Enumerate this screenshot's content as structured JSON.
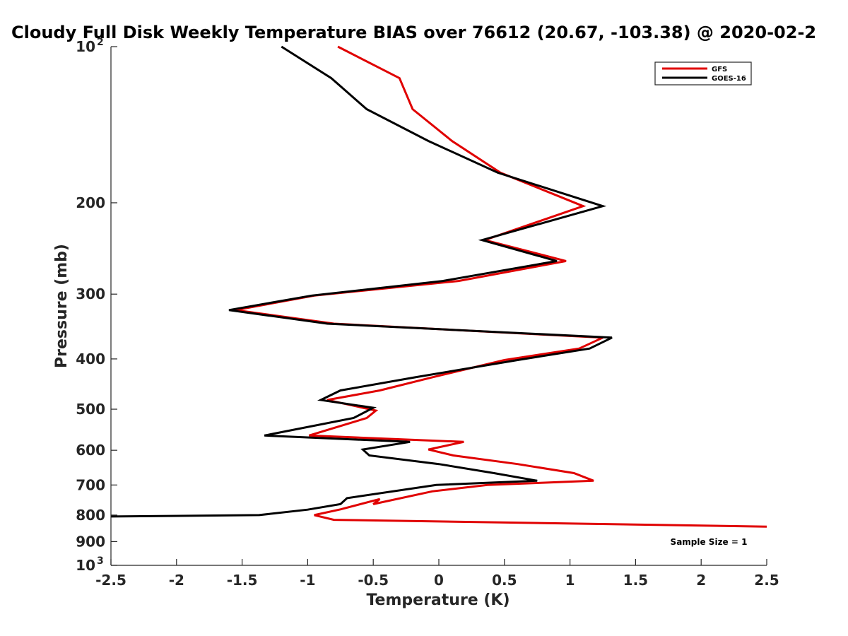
{
  "chart_data": {
    "type": "line",
    "title": "Cloudy Full Disk Weekly Temperature BIAS over 76612 (20.67, -103.38) @ 2020-02-2",
    "xlabel": "Temperature (K)",
    "ylabel": "Pressure (mb)",
    "xlim": [
      -2.5,
      2.5
    ],
    "ylim": [
      100,
      1000
    ],
    "yscale": "log",
    "y_reversed": true,
    "x_ticks": [
      -2.5,
      -2,
      -1.5,
      -1,
      -0.5,
      0,
      0.5,
      1,
      1.5,
      2,
      2.5
    ],
    "x_tick_labels": [
      "-2.5",
      "-2",
      "-1.5",
      "-1",
      "-0.5",
      "0",
      "0.5",
      "1",
      "1.5",
      "2",
      "2.5"
    ],
    "y_ticks": [
      {
        "value": 100,
        "base": "10",
        "exp": "2"
      },
      {
        "value": 200,
        "label": "200"
      },
      {
        "value": 300,
        "label": "300"
      },
      {
        "value": 400,
        "label": "400"
      },
      {
        "value": 500,
        "label": "500"
      },
      {
        "value": 600,
        "label": "600"
      },
      {
        "value": 700,
        "label": "700"
      },
      {
        "value": 800,
        "label": "800"
      },
      {
        "value": 900,
        "label": "900"
      },
      {
        "value": 1000,
        "base": "10",
        "exp": "3"
      }
    ],
    "legend_position": "top-right",
    "annotation": "Sample Size = 1",
    "series": [
      {
        "name": "GFS",
        "color": "#e00000",
        "points": [
          [
            -0.77,
            100
          ],
          [
            -0.3,
            115
          ],
          [
            -0.2,
            132
          ],
          [
            0.1,
            152
          ],
          [
            0.47,
            175
          ],
          [
            1.1,
            203
          ],
          [
            0.35,
            236
          ],
          [
            0.97,
            259
          ],
          [
            0.15,
            283
          ],
          [
            -0.95,
            302
          ],
          [
            -1.55,
            322
          ],
          [
            -0.8,
            342
          ],
          [
            1.25,
            364
          ],
          [
            1.07,
            382
          ],
          [
            0.5,
            402
          ],
          [
            -0.05,
            434
          ],
          [
            -0.45,
            460
          ],
          [
            -0.85,
            480
          ],
          [
            -0.48,
            503
          ],
          [
            -0.55,
            520
          ],
          [
            -0.99,
            562
          ],
          [
            0.19,
            578
          ],
          [
            -0.08,
            598
          ],
          [
            0.11,
            614
          ],
          [
            0.6,
            638
          ],
          [
            1.03,
            664
          ],
          [
            1.18,
            687
          ],
          [
            0.37,
            700
          ],
          [
            -0.05,
            720
          ],
          [
            -0.5,
            762
          ],
          [
            -0.45,
            745
          ],
          [
            -0.75,
            780
          ],
          [
            -0.95,
            800
          ],
          [
            -0.8,
            817
          ],
          [
            2.5,
            842
          ]
        ]
      },
      {
        "name": "GOES-16",
        "color": "#000000",
        "points": [
          [
            -1.2,
            100
          ],
          [
            -0.82,
            115
          ],
          [
            -0.55,
            132
          ],
          [
            -0.08,
            152
          ],
          [
            0.45,
            175
          ],
          [
            1.25,
            203
          ],
          [
            0.33,
            236
          ],
          [
            0.9,
            259
          ],
          [
            0.03,
            283
          ],
          [
            -0.97,
            302
          ],
          [
            -1.6,
            322
          ],
          [
            -0.85,
            342
          ],
          [
            1.32,
            364
          ],
          [
            1.15,
            382
          ],
          [
            0.6,
            402
          ],
          [
            -0.18,
            434
          ],
          [
            -0.75,
            460
          ],
          [
            -0.9,
            480
          ],
          [
            -0.5,
            497
          ],
          [
            -0.65,
            520
          ],
          [
            -1.33,
            562
          ],
          [
            -0.22,
            578
          ],
          [
            -0.58,
            598
          ],
          [
            -0.53,
            614
          ],
          [
            0.0,
            638
          ],
          [
            0.42,
            664
          ],
          [
            0.75,
            687
          ],
          [
            -0.02,
            700
          ],
          [
            -0.7,
            742
          ],
          [
            -0.75,
            762
          ],
          [
            -1.0,
            781
          ],
          [
            -1.37,
            800
          ],
          [
            -2.5,
            805
          ]
        ]
      }
    ]
  }
}
